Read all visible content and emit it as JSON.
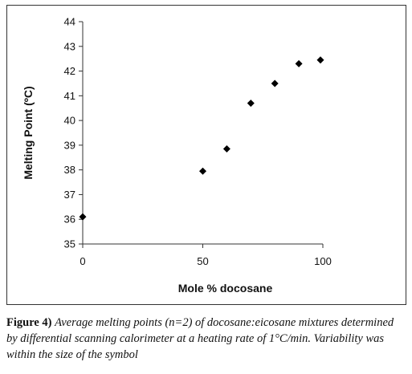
{
  "chart_data": {
    "type": "scatter",
    "xlabel": "Mole % docosane",
    "ylabel": "Melting Point (ºC)",
    "xlim": [
      0,
      100
    ],
    "ylim": [
      35,
      44
    ],
    "x_ticks": [
      "0",
      "50",
      "100"
    ],
    "x_tick_values": [
      0,
      50,
      100
    ],
    "y_ticks": [
      "35",
      "36",
      "37",
      "38",
      "39",
      "40",
      "41",
      "42",
      "43",
      "44"
    ],
    "y_tick_values": [
      35,
      36,
      37,
      38,
      39,
      40,
      41,
      42,
      43,
      44
    ],
    "marker": "diamond",
    "marker_color": "#000000",
    "grid": false,
    "x": [
      0,
      50,
      60,
      70,
      80,
      90,
      99
    ],
    "y": [
      36.1,
      37.95,
      38.85,
      40.7,
      41.5,
      42.3,
      42.45
    ]
  },
  "caption": {
    "label": "Figure 4)",
    "text": "Average melting points (n=2) of docosane:eicosane mixtures determined by differential scanning calorimeter at a heating rate of 1°C/min. Variability was within the size of the symbol"
  }
}
